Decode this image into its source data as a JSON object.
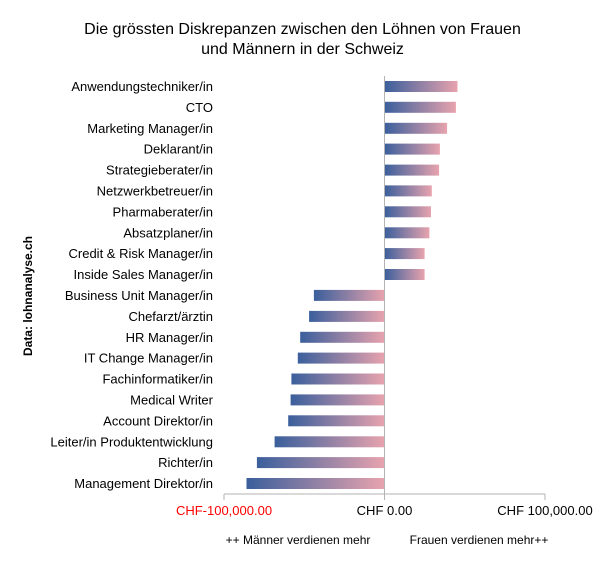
{
  "chart_data": {
    "type": "bar",
    "orientation": "horizontal",
    "title_lines": [
      "Die grössten Diskrepanzen zwischen den Löhnen von Frauen",
      "und Männern in der Schweiz"
    ],
    "source_label": "Data: lohnanalyse.ch",
    "categories": [
      "Anwendungstechniker/in",
      "CTO",
      "Marketing Manager/in",
      "Deklarant/in",
      "Strategieberater/in",
      "Netzwerkbetreuer/in",
      "Pharmaberater/in",
      "Absatzplaner/in",
      "Credit & Risk Manager/in",
      "Inside Sales Manager/in",
      "Business Unit Manager/in",
      "Chefarzt/ärztin",
      "HR Manager/in",
      "IT Change Manager/in",
      "Fachinformatiker/in",
      "Medical Writer",
      "Account Direktor/in",
      "Leiter/in Produktentwicklung",
      "Richter/in",
      "Management Direktor/in"
    ],
    "values": [
      45500,
      44500,
      39000,
      34500,
      34000,
      29500,
      29000,
      28000,
      25000,
      25000,
      -44000,
      -47000,
      -52500,
      -54000,
      -58000,
      -58500,
      -60000,
      -68500,
      -79500,
      -86000
    ],
    "xlim": [
      -100000,
      100000
    ],
    "x_ticks": [
      -100000,
      0,
      100000
    ],
    "x_tick_labels": [
      "CHF-100,000.00",
      "CHF 0.00",
      "CHF 100,000.00"
    ],
    "negative_tick_color": "#ff0000",
    "annotations": {
      "left": "++ Männer verdienen mehr",
      "right": "Frauen verdienen mehr++"
    },
    "bar_gradient": [
      "#3a5f9c",
      "#e8a3ae"
    ],
    "grid": false
  }
}
